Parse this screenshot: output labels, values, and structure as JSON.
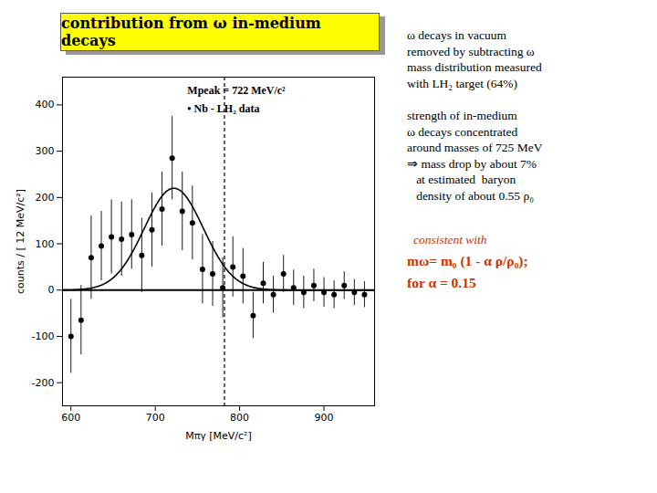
{
  "chart_data": {
    "type": "scatter",
    "title": "contribution from ω in-medium decays",
    "title_background": "#ffff00",
    "x_label": "Mπγ [MeV/c²]",
    "y_label": "counts / [ 12 MeV/c²]",
    "x": [
      600,
      612,
      624,
      636,
      648,
      660,
      672,
      684,
      696,
      708,
      720,
      732,
      744,
      756,
      768,
      780,
      792,
      804,
      816,
      828,
      840,
      852,
      864,
      876,
      888,
      900,
      912,
      924,
      936,
      948
    ],
    "values": [
      -100,
      -65,
      70,
      95,
      115,
      110,
      120,
      75,
      130,
      175,
      285,
      170,
      145,
      45,
      35,
      5,
      50,
      30,
      -55,
      15,
      -10,
      35,
      5,
      -5,
      10,
      -5,
      -10,
      10,
      -5,
      -10
    ],
    "errors": [
      80,
      75,
      90,
      75,
      80,
      80,
      75,
      80,
      80,
      80,
      90,
      85,
      80,
      75,
      70,
      65,
      65,
      60,
      50,
      45,
      40,
      40,
      38,
      35,
      35,
      32,
      30,
      30,
      28,
      28
    ],
    "color": "#000000",
    "marker": "circle",
    "xlim": [
      590,
      960
    ],
    "ylim": [
      -250,
      460
    ],
    "xticks": [
      600,
      700,
      800,
      900
    ],
    "yticks": [
      -200,
      -100,
      0,
      100,
      200,
      300,
      400
    ],
    "grid": false,
    "fit": {
      "type": "gaussian",
      "peak": 722,
      "sigma": 35,
      "amplitude": 220
    },
    "vline": {
      "x": 782,
      "line_style": "dashed"
    },
    "hline": {
      "y": 0
    },
    "annotations": [
      "Mpeak = 722 MeV/c²",
      "• Nb - LH₂ data"
    ],
    "notes": [
      "ω decays in vacuum\nremoved by subtracting ω\nmass distribution measured\nwith LH₂ target (64%)",
      "strength of in-medium\nω decays concentrated\naround masses of 725 MeV\n⇒ mass drop by about 7%\n   at estimated  baryon\n   density of about 0.55 ρ₀"
    ],
    "red_notes": {
      "color": "#cc3300",
      "lines": [
        "consistent with",
        "mω= m₀ (1 - α ρ/ρ₀);",
        "for α = 0.15"
      ]
    }
  }
}
